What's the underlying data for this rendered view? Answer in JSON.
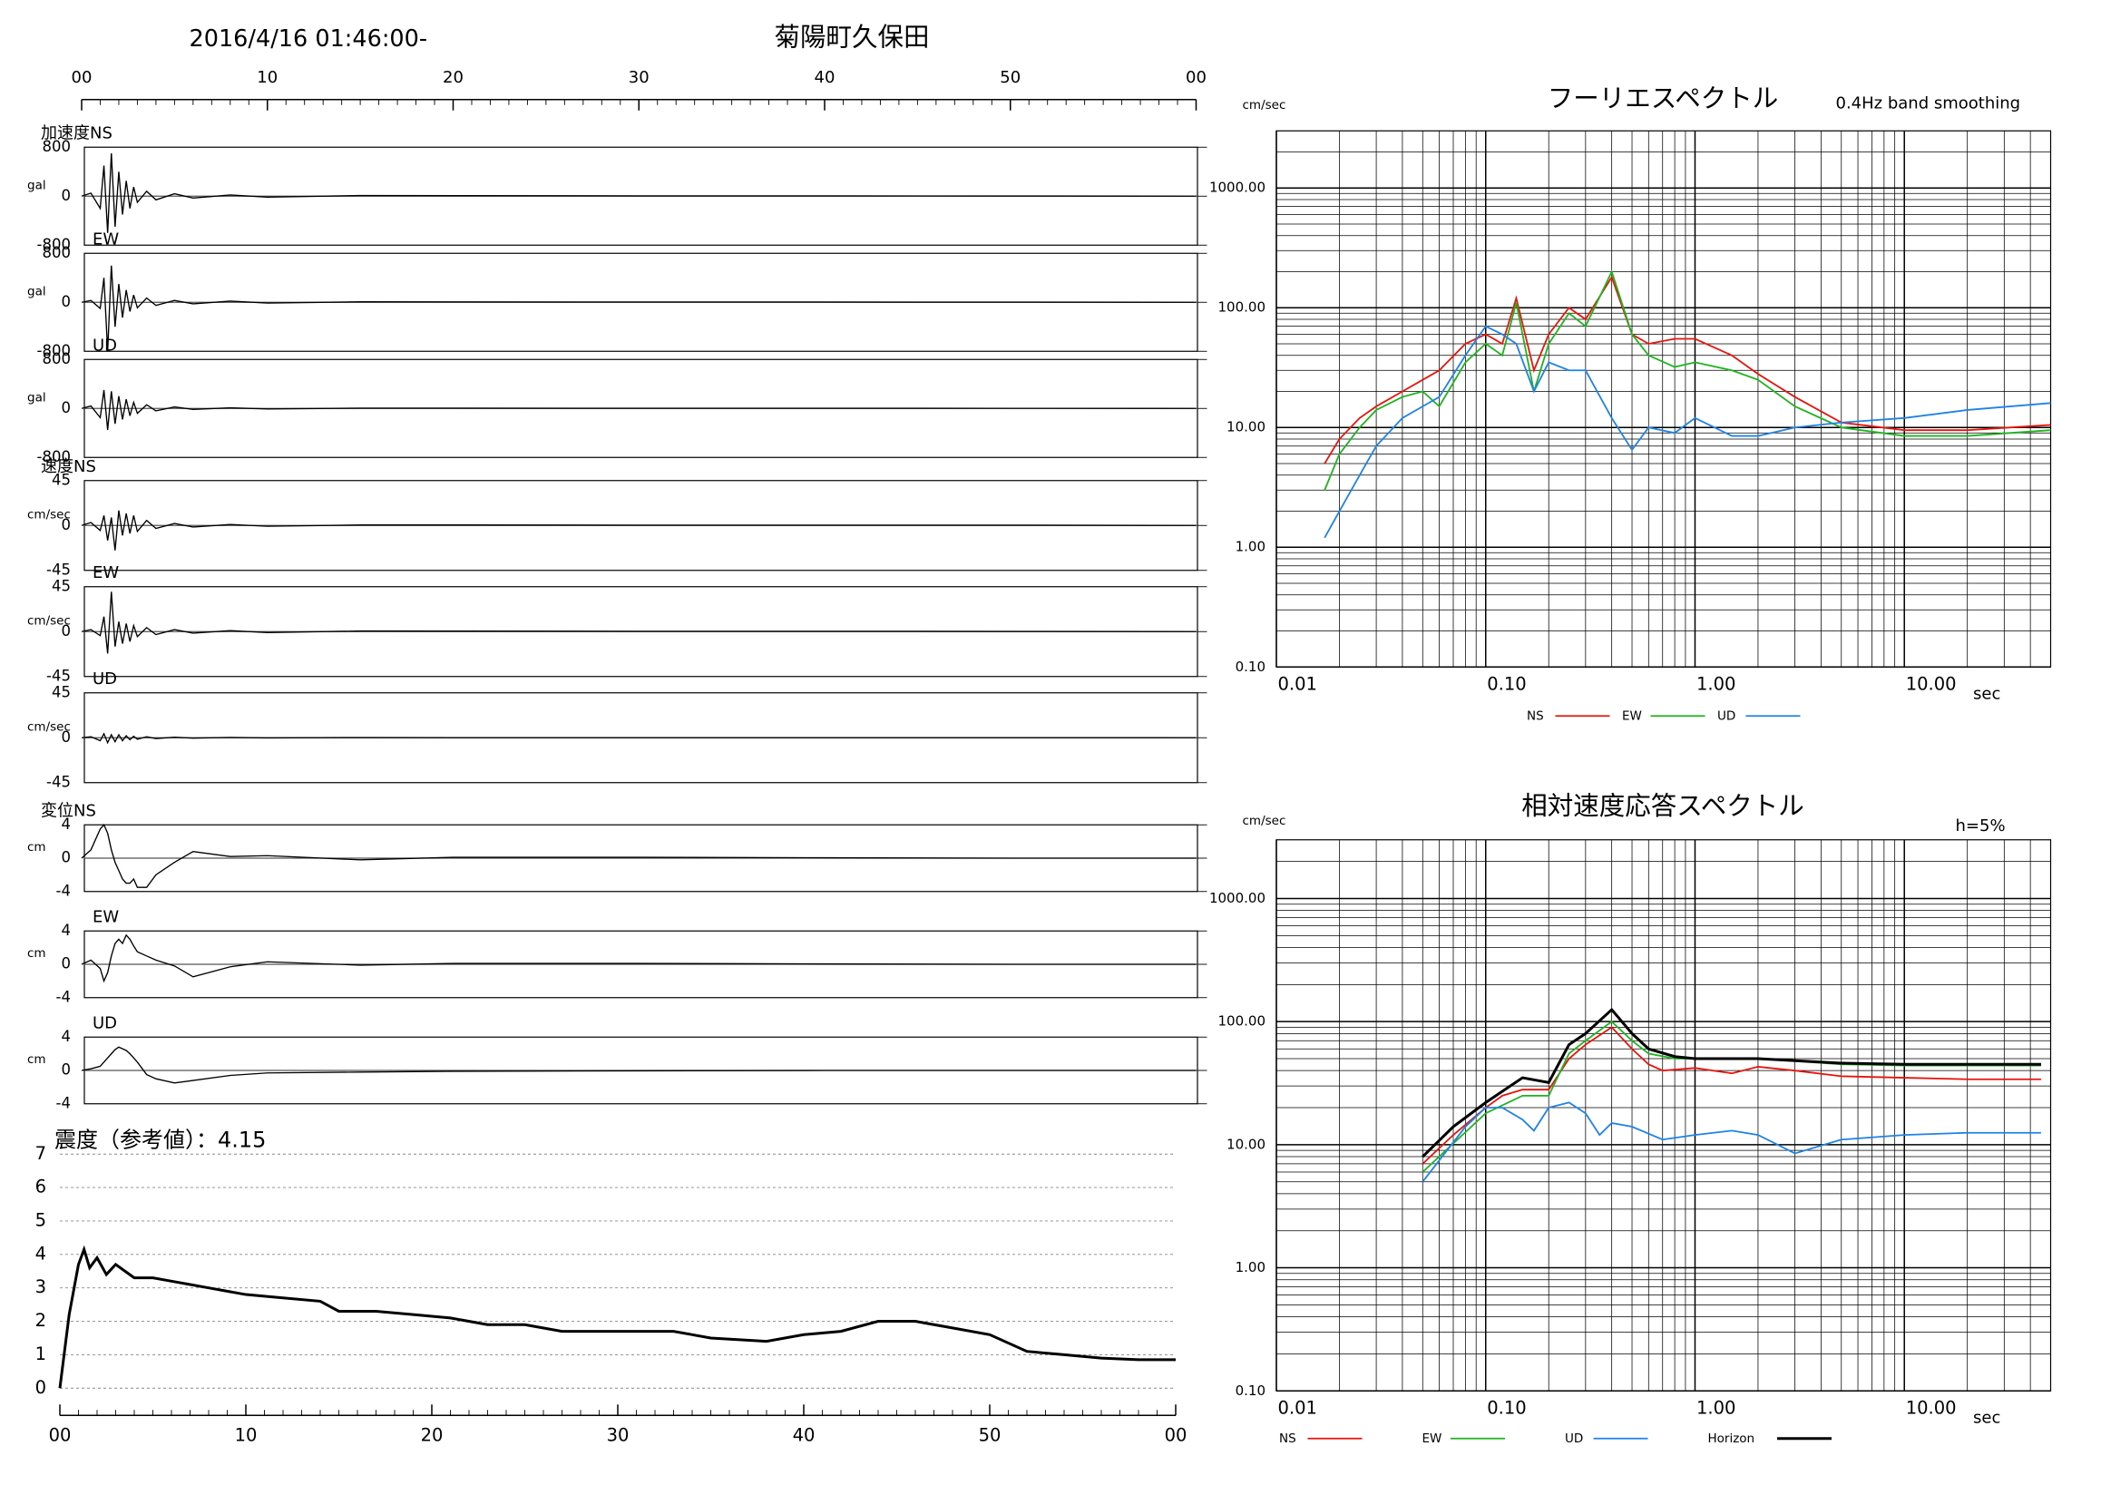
{
  "chart_data": [
    {
      "type": "waveform",
      "title": "2016/4/16 01:46:00-",
      "subtitle": "菊陽町久保田",
      "xlim": [
        0,
        60
      ],
      "xticks": [
        {
          "value": 0,
          "label": "00"
        },
        10,
        20,
        30,
        40,
        50,
        {
          "value": 60,
          "label": "00"
        }
      ],
      "panels": [
        {
          "label": "加速度NS",
          "unit": "gal",
          "ylim": [
            -800,
            800
          ],
          "yticks": [
            800,
            0,
            -800
          ],
          "x": [
            0,
            0.5,
            1,
            1.2,
            1.4,
            1.6,
            1.8,
            2,
            2.2,
            2.4,
            2.6,
            2.8,
            3,
            3.5,
            4,
            5,
            6,
            8,
            10,
            15,
            20,
            30,
            40,
            50,
            60
          ],
          "values": [
            0,
            50,
            -200,
            500,
            -600,
            700,
            -500,
            400,
            -300,
            250,
            -200,
            150,
            -100,
            80,
            -60,
            40,
            -30,
            20,
            -15,
            10,
            8,
            5,
            5,
            3,
            0
          ]
        },
        {
          "label": "EW",
          "unit": "gal",
          "ylim": [
            -800,
            800
          ],
          "yticks": [
            800,
            0,
            -800
          ],
          "x": [
            0,
            0.5,
            1,
            1.2,
            1.4,
            1.6,
            1.8,
            2,
            2.2,
            2.4,
            2.6,
            2.8,
            3,
            3.5,
            4,
            5,
            6,
            8,
            10,
            15,
            20,
            30,
            40,
            50,
            60
          ],
          "values": [
            0,
            30,
            -100,
            400,
            -800,
            600,
            -400,
            300,
            -250,
            200,
            -150,
            120,
            -90,
            70,
            -50,
            30,
            -25,
            20,
            -12,
            8,
            6,
            5,
            4,
            3,
            0
          ]
        },
        {
          "label": "UD",
          "unit": "gal",
          "ylim": [
            -800,
            800
          ],
          "yticks": [
            800,
            0,
            -800
          ],
          "x": [
            0,
            0.5,
            1,
            1.2,
            1.4,
            1.6,
            1.8,
            2,
            2.2,
            2.4,
            2.6,
            2.8,
            3,
            3.5,
            4,
            5,
            6,
            8,
            10,
            15,
            20,
            30,
            40,
            50,
            60
          ],
          "values": [
            0,
            40,
            -150,
            300,
            -350,
            280,
            -250,
            200,
            -180,
            150,
            -120,
            100,
            -80,
            60,
            -40,
            25,
            -15,
            10,
            -8,
            5,
            4,
            3,
            3,
            2,
            0
          ]
        },
        {
          "label": "速度NS",
          "unit": "cm/sec",
          "ylim": [
            -45,
            45
          ],
          "yticks": [
            45,
            0,
            -45
          ],
          "x": [
            0,
            0.5,
            1,
            1.2,
            1.4,
            1.6,
            1.8,
            2,
            2.2,
            2.4,
            2.6,
            2.8,
            3,
            3.5,
            4,
            5,
            6,
            8,
            10,
            15,
            20,
            30,
            40,
            50,
            60
          ],
          "values": [
            0,
            3,
            -5,
            10,
            -15,
            8,
            -25,
            15,
            -10,
            12,
            -8,
            10,
            -6,
            5,
            -3,
            2,
            -1.5,
            1,
            -0.8,
            0.5,
            0.5,
            0.3,
            0.3,
            0.3,
            0
          ]
        },
        {
          "label": "EW",
          "unit": "cm/sec",
          "ylim": [
            -45,
            45
          ],
          "yticks": [
            45,
            0,
            -45
          ],
          "x": [
            0,
            0.5,
            1,
            1.2,
            1.4,
            1.6,
            1.8,
            2,
            2.2,
            2.4,
            2.6,
            2.8,
            3,
            3.5,
            4,
            5,
            6,
            8,
            10,
            15,
            20,
            30,
            40,
            50,
            60
          ],
          "values": [
            0,
            2,
            -4,
            15,
            -22,
            40,
            -15,
            10,
            -12,
            8,
            -10,
            6,
            -5,
            4,
            -3,
            2,
            -1.5,
            1,
            -1,
            0.6,
            0.5,
            0.3,
            0.3,
            0.2,
            0
          ]
        },
        {
          "label": "UD",
          "unit": "cm/sec",
          "ylim": [
            -45,
            45
          ],
          "yticks": [
            45,
            0,
            -45
          ],
          "x": [
            0,
            0.5,
            1,
            1.2,
            1.4,
            1.6,
            1.8,
            2,
            2.2,
            2.4,
            2.6,
            2.8,
            3,
            3.5,
            4,
            5,
            6,
            8,
            10,
            15,
            20,
            30,
            40,
            50,
            60
          ],
          "values": [
            0,
            1,
            -3,
            4,
            -5,
            3,
            -4,
            3,
            -3,
            2,
            -2,
            1.5,
            -1.5,
            1,
            -0.8,
            0.5,
            -0.4,
            0.3,
            -0.2,
            0.2,
            0.1,
            0.1,
            0.1,
            0.1,
            0
          ]
        },
        {
          "label": "変位NS",
          "unit": "cm",
          "ylim": [
            -4,
            4
          ],
          "yticks": [
            4,
            0,
            -4
          ],
          "x": [
            0,
            0.5,
            1,
            1.2,
            1.4,
            1.6,
            1.8,
            2,
            2.2,
            2.4,
            2.6,
            2.8,
            3,
            3.5,
            4,
            5,
            6,
            8,
            10,
            15,
            20,
            30,
            40,
            50,
            60
          ],
          "values": [
            0,
            1,
            3.5,
            4,
            3,
            1,
            -0.5,
            -1.5,
            -2.5,
            -3,
            -3,
            -2.5,
            -3.5,
            -3.5,
            -2,
            -0.5,
            0.8,
            0.2,
            0.3,
            -0.2,
            0.1,
            0.1,
            0.05,
            0,
            0
          ]
        },
        {
          "label": "EW",
          "unit": "cm",
          "ylim": [
            -4,
            4
          ],
          "yticks": [
            4,
            0,
            -4
          ],
          "x": [
            0,
            0.5,
            1,
            1.2,
            1.4,
            1.6,
            1.8,
            2,
            2.2,
            2.4,
            2.6,
            2.8,
            3,
            3.5,
            4,
            5,
            6,
            8,
            10,
            15,
            20,
            30,
            40,
            50,
            60
          ],
          "values": [
            0,
            0.5,
            -0.5,
            -2,
            -1,
            1,
            2.5,
            3,
            2.5,
            3.5,
            3,
            2.2,
            1.5,
            1,
            0.5,
            -0.2,
            -1.5,
            -0.3,
            0.3,
            -0.1,
            0.1,
            0.1,
            0.05,
            0,
            0
          ]
        },
        {
          "label": "UD",
          "unit": "cm",
          "ylim": [
            -4,
            4
          ],
          "yticks": [
            4,
            0,
            -4
          ],
          "x": [
            0,
            0.5,
            1,
            1.2,
            1.4,
            1.6,
            1.8,
            2,
            2.2,
            2.4,
            2.6,
            2.8,
            3,
            3.5,
            4,
            5,
            6,
            8,
            10,
            15,
            20,
            30,
            40,
            50,
            60
          ],
          "values": [
            0,
            0.2,
            0.5,
            1,
            1.5,
            2,
            2.5,
            2.8,
            2.6,
            2.4,
            2,
            1.5,
            1,
            -0.5,
            -1,
            -1.5,
            -1.2,
            -0.6,
            -0.3,
            -0.2,
            -0.1,
            -0.05,
            0,
            0,
            0
          ]
        }
      ]
    },
    {
      "type": "line",
      "title": "震度（参考値）：4.15",
      "color": "#000000",
      "xlim": [
        0,
        60
      ],
      "xticks": [
        {
          "value": 0,
          "label": "00"
        },
        10,
        20,
        30,
        40,
        50,
        {
          "value": 60,
          "label": "00"
        }
      ],
      "ylim": [
        0,
        7
      ],
      "yticks": [
        0,
        1,
        2,
        3,
        4,
        5,
        6,
        7
      ],
      "grid": true,
      "x": [
        0,
        0.5,
        1,
        1.3,
        1.6,
        2,
        2.5,
        3,
        3.5,
        4,
        5,
        6,
        7,
        8,
        10,
        12,
        14,
        15,
        17,
        19,
        21,
        23,
        25,
        27,
        30,
        33,
        35,
        38,
        40,
        42,
        44,
        46,
        48,
        50,
        52,
        54,
        56,
        58,
        60
      ],
      "values": [
        0,
        2.2,
        3.7,
        4.15,
        3.6,
        3.9,
        3.4,
        3.7,
        3.5,
        3.3,
        3.3,
        3.2,
        3.1,
        3.0,
        2.8,
        2.7,
        2.6,
        2.3,
        2.3,
        2.2,
        2.1,
        1.9,
        1.9,
        1.7,
        1.7,
        1.7,
        1.5,
        1.4,
        1.6,
        1.7,
        2.0,
        2.0,
        1.8,
        1.6,
        1.1,
        1.0,
        0.9,
        0.85,
        0.85
      ]
    },
    {
      "type": "line",
      "title": "フーリエスペクトル",
      "subtitle": "0.4Hz band smoothing",
      "y_label": "cm/sec",
      "x_label": "sec",
      "log_x": true,
      "log_y": true,
      "grid": true,
      "xlim": [
        0.01,
        50
      ],
      "ylim": [
        0.1,
        3000
      ],
      "xticks": [
        {
          "value": 0.01,
          "label": "0.01"
        },
        {
          "value": 0.1,
          "label": "0.10"
        },
        {
          "value": 1,
          "label": "1.00"
        },
        {
          "value": 10,
          "label": "10.00"
        }
      ],
      "yticks": [
        {
          "value": 0.1,
          "label": "0.10"
        },
        {
          "value": 1,
          "label": "1.00"
        },
        {
          "value": 10,
          "label": "10.00"
        },
        {
          "value": 100,
          "label": "100.00"
        },
        {
          "value": 1000,
          "label": "1000.00"
        }
      ],
      "series": [
        {
          "name": "NS",
          "color": "#e8140c",
          "x": [
            0.017,
            0.02,
            0.025,
            0.03,
            0.04,
            0.05,
            0.06,
            0.08,
            0.1,
            0.12,
            0.14,
            0.17,
            0.2,
            0.25,
            0.3,
            0.4,
            0.5,
            0.6,
            0.8,
            1.0,
            1.5,
            2,
            3,
            5,
            10,
            20,
            50
          ],
          "values": [
            5,
            8,
            12,
            15,
            20,
            25,
            30,
            50,
            60,
            50,
            120,
            30,
            60,
            100,
            80,
            180,
            60,
            50,
            55,
            55,
            40,
            28,
            18,
            11,
            9.5,
            9.5,
            10.5
          ]
        },
        {
          "name": "EW",
          "color": "#1eb41e",
          "x": [
            0.017,
            0.02,
            0.025,
            0.03,
            0.04,
            0.05,
            0.06,
            0.08,
            0.1,
            0.12,
            0.14,
            0.17,
            0.2,
            0.25,
            0.3,
            0.4,
            0.5,
            0.6,
            0.8,
            1.0,
            1.5,
            2,
            3,
            5,
            10,
            20,
            50
          ],
          "values": [
            3,
            6,
            10,
            14,
            18,
            20,
            15,
            35,
            50,
            40,
            110,
            20,
            50,
            90,
            70,
            200,
            60,
            40,
            32,
            35,
            30,
            25,
            15,
            10,
            8.5,
            8.5,
            9.5
          ]
        },
        {
          "name": "UD",
          "color": "#1e82e6",
          "x": [
            0.017,
            0.02,
            0.025,
            0.03,
            0.04,
            0.05,
            0.06,
            0.08,
            0.1,
            0.12,
            0.14,
            0.17,
            0.2,
            0.25,
            0.3,
            0.4,
            0.5,
            0.6,
            0.8,
            1.0,
            1.5,
            2,
            3,
            5,
            10,
            20,
            50
          ],
          "values": [
            1.2,
            2,
            4,
            7,
            12,
            15,
            18,
            40,
            70,
            60,
            50,
            20,
            35,
            30,
            30,
            12,
            6.5,
            10,
            9,
            12,
            8.5,
            8.5,
            10,
            11,
            12,
            14,
            16
          ]
        }
      ]
    },
    {
      "type": "line",
      "title": "相対速度応答スペクトル",
      "annotation": "h=5%",
      "y_label": "cm/sec",
      "x_label": "sec",
      "log_x": true,
      "log_y": true,
      "grid": true,
      "xlim": [
        0.01,
        50
      ],
      "ylim": [
        0.1,
        3000
      ],
      "xticks": [
        {
          "value": 0.01,
          "label": "0.01"
        },
        {
          "value": 0.1,
          "label": "0.10"
        },
        {
          "value": 1,
          "label": "1.00"
        },
        {
          "value": 10,
          "label": "10.00"
        }
      ],
      "yticks": [
        {
          "value": 0.1,
          "label": "0.10"
        },
        {
          "value": 1,
          "label": "1.00"
        },
        {
          "value": 10,
          "label": "10.00"
        },
        {
          "value": 100,
          "label": "100.00"
        },
        {
          "value": 1000,
          "label": "1000.00"
        }
      ],
      "series": [
        {
          "name": "NS",
          "color": "#e8140c",
          "x": [
            0.05,
            0.07,
            0.1,
            0.12,
            0.15,
            0.2,
            0.25,
            0.3,
            0.4,
            0.5,
            0.6,
            0.7,
            1,
            1.5,
            2,
            3,
            5,
            10,
            20,
            45
          ],
          "values": [
            7,
            12,
            20,
            25,
            28,
            28,
            50,
            65,
            90,
            60,
            45,
            40,
            42,
            38,
            43,
            40,
            36,
            35,
            34,
            34
          ]
        },
        {
          "name": "EW",
          "color": "#1eb41e",
          "x": [
            0.05,
            0.1,
            0.15,
            0.2,
            0.25,
            0.3,
            0.4,
            0.5,
            0.6,
            0.8,
            1,
            2,
            5,
            10,
            20,
            45
          ],
          "values": [
            6,
            18,
            25,
            25,
            55,
            70,
            100,
            70,
            55,
            50,
            50,
            50,
            45,
            44,
            44,
            44
          ]
        },
        {
          "name": "UD",
          "color": "#1e82e6",
          "x": [
            0.05,
            0.08,
            0.1,
            0.12,
            0.15,
            0.17,
            0.2,
            0.25,
            0.3,
            0.35,
            0.4,
            0.5,
            0.7,
            1,
            1.5,
            2,
            3,
            5,
            10,
            20,
            45
          ],
          "values": [
            5,
            14,
            20,
            20,
            16,
            13,
            20,
            22,
            18,
            12,
            15,
            14,
            11,
            12,
            13,
            12,
            8.5,
            11,
            12,
            12.5,
            12.5
          ]
        },
        {
          "name": "Horizon",
          "color": "#000000",
          "x": [
            0.05,
            0.07,
            0.1,
            0.15,
            0.2,
            0.25,
            0.3,
            0.4,
            0.5,
            0.6,
            0.8,
            1,
            2,
            5,
            10,
            20,
            45
          ],
          "values": [
            8,
            14,
            22,
            35,
            32,
            65,
            80,
            125,
            80,
            60,
            52,
            50,
            50,
            46,
            45,
            45,
            45
          ]
        }
      ]
    }
  ]
}
